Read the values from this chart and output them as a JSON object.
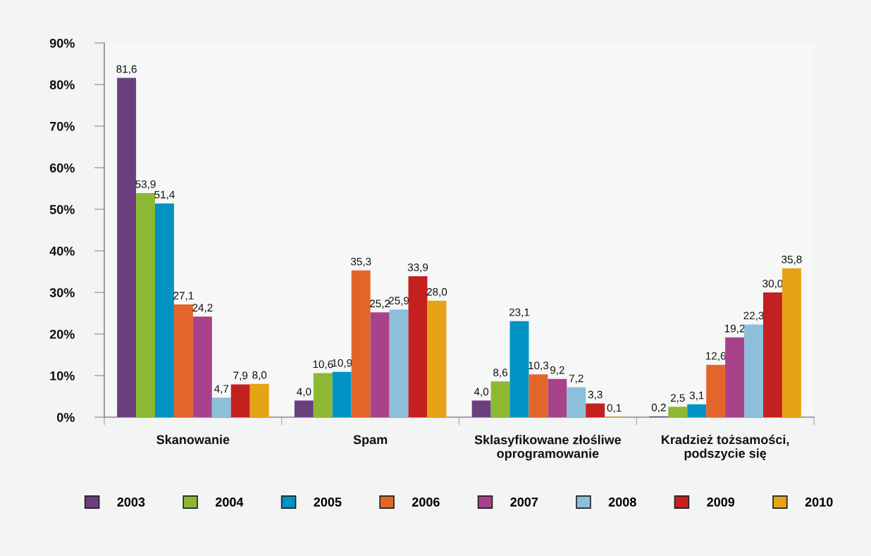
{
  "chart_data": {
    "type": "bar",
    "categories": [
      "Skanowanie",
      "Spam",
      "Sklasyfikowane złośliwe\noprogramowanie",
      "Kradzież tożsamości,\npodszycie się"
    ],
    "series": [
      {
        "name": "2003",
        "color": "#6b3f7e",
        "values": [
          81.6,
          4.0,
          4.0,
          0.2
        ],
        "value_labels": [
          "81,6",
          "4,0",
          "4,0",
          "0,2"
        ]
      },
      {
        "name": "2004",
        "color": "#8db833",
        "values": [
          53.9,
          10.6,
          8.6,
          2.5
        ],
        "value_labels": [
          "53,9",
          "10,6",
          "8,6",
          "2,5"
        ]
      },
      {
        "name": "2005",
        "color": "#0093c4",
        "values": [
          51.4,
          10.9,
          23.1,
          3.1
        ],
        "value_labels": [
          "51,4",
          "10,9",
          "23,1",
          "3,1"
        ]
      },
      {
        "name": "2006",
        "color": "#e4652a",
        "values": [
          27.1,
          35.3,
          10.3,
          12.6
        ],
        "value_labels": [
          "27,1",
          "35,3",
          "10,3",
          "12,6"
        ]
      },
      {
        "name": "2007",
        "color": "#a8428a",
        "values": [
          24.2,
          25.2,
          9.2,
          19.2
        ],
        "value_labels": [
          "24,2",
          "25,2",
          "9,2",
          "19,2"
        ]
      },
      {
        "name": "2008",
        "color": "#8cbfda",
        "values": [
          4.7,
          25.9,
          7.2,
          22.3
        ],
        "value_labels": [
          "4,7",
          "25,9",
          "7,2",
          "22,3"
        ]
      },
      {
        "name": "2009",
        "color": "#c4201f",
        "values": [
          7.9,
          33.9,
          3.3,
          30.0
        ],
        "value_labels": [
          "7,9",
          "33,9",
          "3,3",
          "30,0"
        ]
      },
      {
        "name": "2010",
        "color": "#e6a315",
        "values": [
          8.0,
          28.0,
          0.1,
          35.8
        ],
        "value_labels": [
          "8,0",
          "28,0",
          "0,1",
          "35,8"
        ]
      }
    ],
    "ylim": [
      0,
      90
    ],
    "yticks": [
      {
        "value": 0,
        "label": "0%"
      },
      {
        "value": 10,
        "label": "10%"
      },
      {
        "value": 20,
        "label": "20%"
      },
      {
        "value": 30,
        "label": "30%"
      },
      {
        "value": 40,
        "label": "40%"
      },
      {
        "value": 50,
        "label": "50%"
      },
      {
        "value": 60,
        "label": "60%"
      },
      {
        "value": 70,
        "label": "70%"
      },
      {
        "value": 80,
        "label": "80%"
      },
      {
        "value": 90,
        "label": "90%"
      }
    ],
    "grid": false,
    "legend": "bottom"
  }
}
